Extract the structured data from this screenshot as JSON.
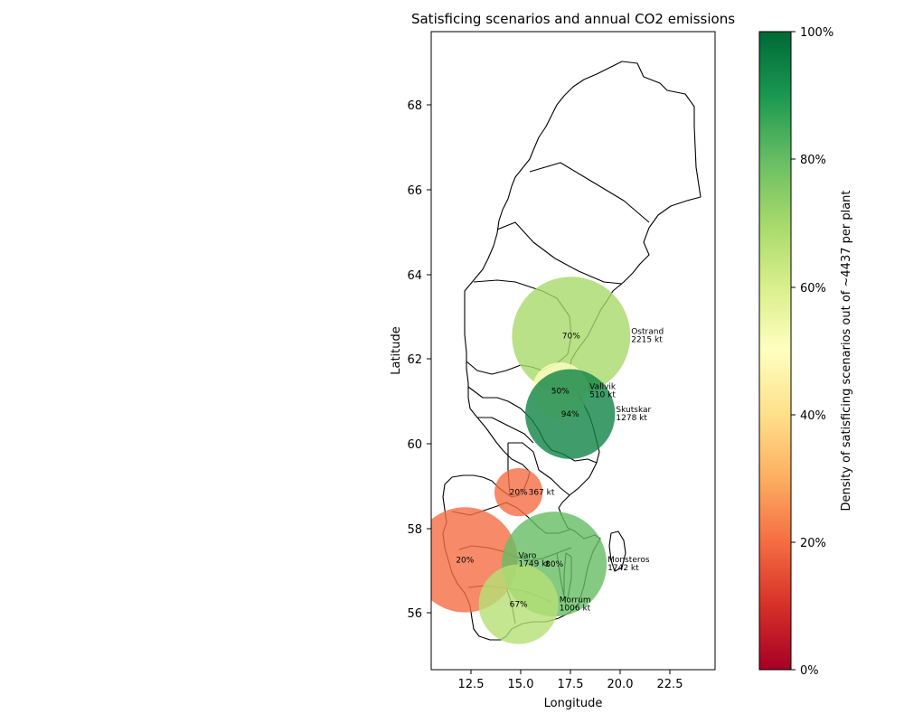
{
  "chart_data": {
    "type": "scatter",
    "title": "Satisficing scenarios and annual CO2 emissions",
    "xlabel": "Longitude",
    "ylabel": "Latitude",
    "xlim": [
      10.4,
      24.7
    ],
    "ylim": [
      54.6,
      69.7
    ],
    "xticks": [
      "12.5",
      "15.0",
      "17.5",
      "20.0",
      "22.5"
    ],
    "yticks": [
      "56",
      "58",
      "60",
      "62",
      "64",
      "66",
      "68"
    ],
    "colorbar": {
      "label": "Density of satisficing scenarios out of ~4437 per plant",
      "ticks": [
        "0%",
        "20%",
        "40%",
        "60%",
        "80%",
        "100%"
      ],
      "colormap": "RdYlGn",
      "range": [
        0,
        100
      ]
    },
    "points": [
      {
        "name": "Ostrand",
        "lon": 17.45,
        "lat": 62.5,
        "emission": "2215 kt",
        "emission_kt": 2215,
        "density": "70%",
        "density_value": 70
      },
      {
        "name": "Vallvik",
        "lon": 16.9,
        "lat": 61.2,
        "emission": "510 kt",
        "emission_kt": 510,
        "density": "50%",
        "density_value": 50
      },
      {
        "name": "Skutskar",
        "lon": 17.4,
        "lat": 60.65,
        "emission": "1278 kt",
        "emission_kt": 1278,
        "density": "94%",
        "density_value": 94
      },
      {
        "name": "",
        "lon": 14.8,
        "lat": 58.8,
        "emission": "367 kt",
        "emission_kt": 367,
        "density": "20%",
        "density_value": 20
      },
      {
        "name": "Varo",
        "lon": 12.1,
        "lat": 57.2,
        "emission": "1749 kt",
        "emission_kt": 1749,
        "density": "20%",
        "density_value": 20
      },
      {
        "name": "Monsteros",
        "lon": 16.6,
        "lat": 57.1,
        "emission": "1742 kt",
        "emission_kt": 1742,
        "density": "80%",
        "density_value": 80
      },
      {
        "name": "Morrum",
        "lon": 14.8,
        "lat": 56.15,
        "emission": "1006 kt",
        "emission_kt": 1006,
        "density": "67%",
        "density_value": 67
      }
    ]
  }
}
